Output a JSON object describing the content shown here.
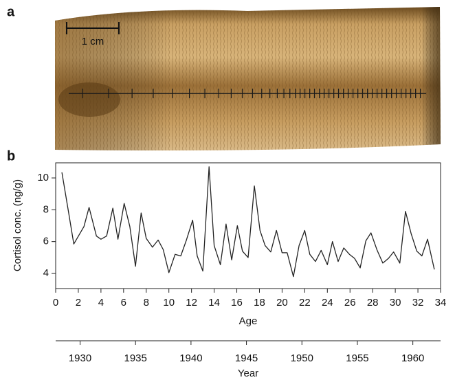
{
  "panel_a": {
    "label": "a",
    "scale_bar": "1 cm"
  },
  "chart_data": {
    "type": "line",
    "panel_label": "b",
    "x_label": "Age",
    "y_label": "Cortisol conc. (ng/g)",
    "x": [
      0.55,
      1.15,
      1.6,
      2.5,
      2.95,
      3.6,
      4.0,
      4.5,
      5.05,
      5.5,
      6.05,
      6.55,
      7.05,
      7.55,
      8.0,
      8.55,
      9.05,
      9.5,
      10.0,
      10.55,
      11.05,
      11.55,
      12.1,
      12.5,
      13.0,
      13.55,
      14.0,
      14.55,
      15.05,
      15.55,
      16.05,
      16.5,
      17.0,
      17.55,
      18.05,
      18.5,
      19.0,
      19.5,
      20.0,
      20.45,
      21.0,
      21.5,
      22.0,
      22.45,
      22.95,
      23.45,
      24.0,
      24.45,
      24.95,
      25.45,
      25.95,
      26.4,
      26.9,
      27.4,
      27.85,
      28.4,
      28.9,
      29.4,
      29.85,
      30.4,
      30.9,
      31.4,
      31.9,
      32.35,
      32.85,
      33.45
    ],
    "values": [
      10.35,
      7.8,
      5.85,
      6.95,
      8.15,
      6.35,
      6.15,
      6.35,
      8.1,
      6.15,
      8.4,
      6.95,
      4.45,
      7.8,
      6.2,
      5.65,
      6.1,
      5.5,
      4.05,
      5.2,
      5.1,
      6.1,
      7.35,
      5.1,
      4.15,
      10.7,
      5.75,
      4.55,
      7.1,
      4.85,
      7.0,
      5.4,
      5.0,
      9.5,
      6.7,
      5.75,
      5.35,
      6.7,
      5.3,
      5.3,
      3.8,
      5.75,
      6.7,
      5.2,
      4.75,
      5.45,
      4.55,
      6.0,
      4.75,
      5.6,
      5.2,
      4.95,
      4.35,
      6.05,
      6.55,
      5.45,
      4.65,
      4.95,
      5.35,
      4.65,
      7.9,
      6.5,
      5.4,
      5.1,
      6.15,
      4.25
    ],
    "color": "#222222",
    "xlim": [
      0,
      34
    ],
    "xticks": [
      0,
      2,
      4,
      6,
      8,
      10,
      12,
      14,
      16,
      18,
      20,
      22,
      24,
      26,
      28,
      30,
      32,
      34
    ],
    "ylim": [
      3.05,
      10.95
    ],
    "yticks": [
      4,
      6,
      8,
      10
    ],
    "x2_label": "Year",
    "x2lim": [
      1927.8,
      1962.5
    ],
    "x2ticks": [
      1930,
      1935,
      1940,
      1945,
      1950,
      1955,
      1960
    ]
  }
}
